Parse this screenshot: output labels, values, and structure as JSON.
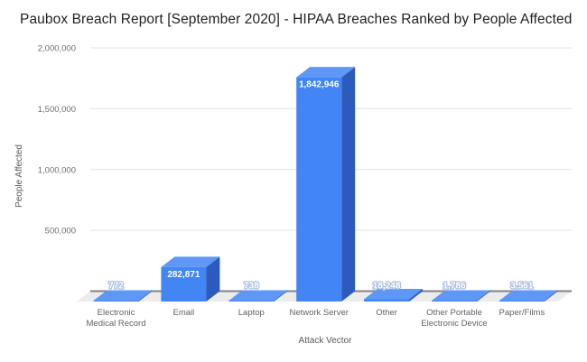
{
  "chart_data": {
    "type": "bar",
    "style": "3d-column",
    "title": "Paubox Breach Report [September 2020] - HIPAA Breaches Ranked by People Affected",
    "xlabel": "Attack Vector",
    "ylabel": "People Affected",
    "categories": [
      "Electronic\nMedical Record",
      "Email",
      "Laptop",
      "Network Server",
      "Other",
      "Other Portable\nElectronic Device",
      "Paper/Films"
    ],
    "values": [
      772,
      282871,
      738,
      1842946,
      18248,
      1786,
      3561
    ],
    "value_labels": [
      "772",
      "282,871",
      "738",
      "1,842,946",
      "18,248",
      "1,786",
      "3,561"
    ],
    "ylim": [
      0,
      2000000
    ],
    "yticks": [
      500000,
      1000000,
      1500000,
      2000000
    ],
    "ytick_labels": [
      "500,000",
      "1,000,000",
      "1,500,000",
      "2,000,000"
    ],
    "grid": true,
    "legend": "none",
    "colors": {
      "bar_front": "#4285f4",
      "bar_top": "#5e97f6",
      "bar_side": "#2d5bbd",
      "gridline": "#e3e3e3",
      "axis_line": "#838383",
      "floor": "#ececec",
      "value_label": "#ffffff",
      "tick_label": "#6e6e6e",
      "axis_title": "#5a5a5a",
      "title": "#202124"
    }
  }
}
